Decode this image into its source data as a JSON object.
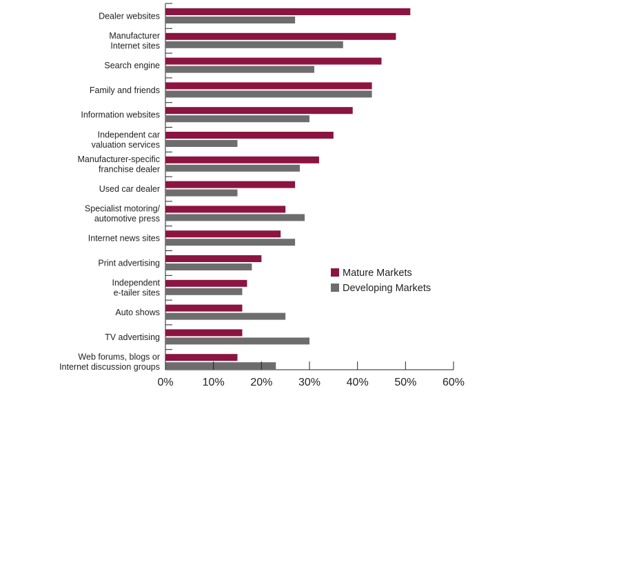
{
  "chart_data": {
    "type": "bar",
    "orientation": "horizontal",
    "categories": [
      [
        "Dealer websites"
      ],
      [
        "Manufacturer",
        "Internet sites"
      ],
      [
        "Search engine"
      ],
      [
        "Family and friends"
      ],
      [
        "Information websites"
      ],
      [
        "Independent car",
        "valuation services"
      ],
      [
        "Manufacturer-specific",
        "franchise dealer"
      ],
      [
        "Used car dealer"
      ],
      [
        "Specialist motoring/",
        "automotive press"
      ],
      [
        "Internet news sites"
      ],
      [
        "Print advertising"
      ],
      [
        "Independent",
        "e-tailer sites"
      ],
      [
        "Auto shows"
      ],
      [
        "TV advertising"
      ],
      [
        "Web forums, blogs or",
        "Internet discussion groups"
      ]
    ],
    "series": [
      {
        "name": "Mature Markets",
        "color": "#8c1440",
        "values": [
          51,
          48,
          45,
          43,
          39,
          35,
          32,
          27,
          25,
          24,
          20,
          17,
          16,
          16,
          15
        ]
      },
      {
        "name": "Developing Markets",
        "color": "#6d6d6d",
        "values": [
          27,
          37,
          31,
          43,
          30,
          15,
          28,
          15,
          29,
          27,
          18,
          16,
          25,
          30,
          23
        ]
      }
    ],
    "xlim": [
      0,
      60
    ],
    "x_ticks": [
      0,
      10,
      20,
      30,
      40,
      50,
      60
    ],
    "tick_labels": [
      "0%",
      "10%",
      "20%",
      "30%",
      "40%",
      "50%",
      "60%"
    ],
    "legend_position": "right, mid-chart",
    "grid": false
  }
}
